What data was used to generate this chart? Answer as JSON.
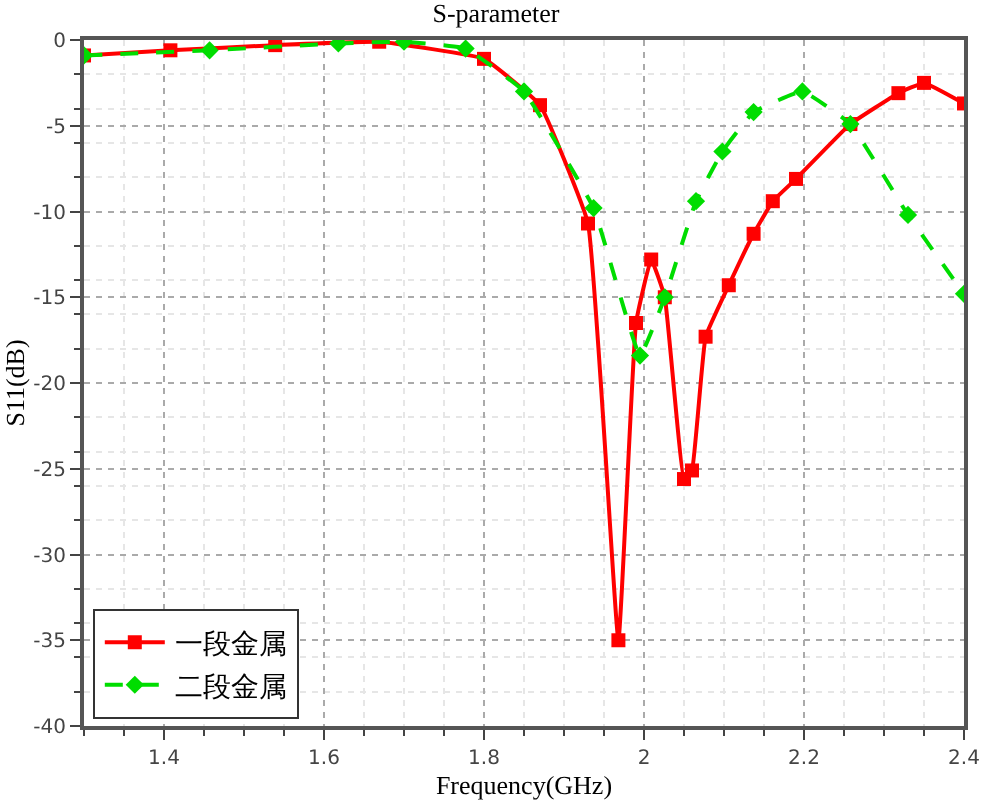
{
  "chart_data": {
    "type": "line",
    "title": "S-parameter",
    "xlabel": "Frequency(GHz)",
    "ylabel": "S11(dB)",
    "xlim": [
      1.3,
      2.4
    ],
    "xticks": [
      1.4,
      1.6,
      1.8,
      2,
      2.2,
      2.4
    ],
    "ylim": [
      -40,
      0
    ],
    "yticks": [
      -40,
      -35,
      -30,
      -25,
      -20,
      -15,
      -10,
      -5,
      0
    ],
    "grid": true,
    "legend": "bottom left",
    "series": [
      {
        "name": "一段金属",
        "color": "#ff0000",
        "marker": "square",
        "line_style": "solid",
        "x": [
          1.3,
          1.408,
          1.539,
          1.669,
          1.8,
          1.87,
          1.93,
          1.968,
          1.99,
          2.009,
          2.026,
          2.05,
          2.06,
          2.077,
          2.106,
          2.137,
          2.161,
          2.19,
          2.258,
          2.318,
          2.35,
          2.4
        ],
        "values": [
          -0.9,
          -0.6,
          -0.3,
          -0.1,
          -1.1,
          -3.8,
          -10.7,
          -35,
          -16.5,
          -12.8,
          -15,
          -25.6,
          -25.1,
          -17.3,
          -14.3,
          -11.3,
          -9.4,
          -8.1,
          -4.9,
          -3.1,
          -2.5,
          -3.7
        ]
      },
      {
        "name": "二段金属",
        "color": "#00dd00",
        "marker": "diamond",
        "line_style": "dashed",
        "x": [
          1.3,
          1.457,
          1.618,
          1.7,
          1.777,
          1.85,
          1.937,
          1.995,
          2.026,
          2.065,
          2.098,
          2.137,
          2.198,
          2.258,
          2.33,
          2.4
        ],
        "values": [
          -0.9,
          -0.6,
          -0.2,
          -0.1,
          -0.5,
          -3,
          -9.8,
          -18.4,
          -15,
          -9.4,
          -6.5,
          -4.2,
          -3.0,
          -4.9,
          -10.2,
          -14.8
        ]
      }
    ]
  }
}
